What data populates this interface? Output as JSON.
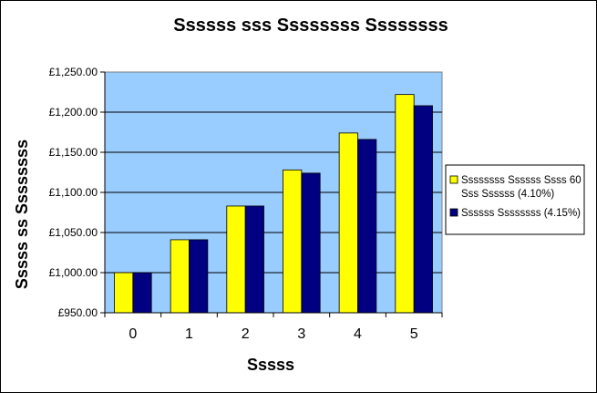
{
  "chart_data": {
    "type": "bar",
    "title": "Ssssss sss Ssssssss Ssssssss",
    "xlabel": "Sssss",
    "ylabel": "Sssss ss Ssssssss",
    "categories": [
      "0",
      "1",
      "2",
      "3",
      "4",
      "5"
    ],
    "ylim": [
      950,
      1250
    ],
    "yticks": [
      950,
      1000,
      1050,
      1100,
      1150,
      1200,
      1250
    ],
    "ytick_labels": [
      "£950.00",
      "£1,000.00",
      "£1,050.00",
      "£1,100.00",
      "£1,150.00",
      "£1,200.00",
      "£1,250.00"
    ],
    "grid": true,
    "legend_position": "right",
    "plot_background": "#99CCFF",
    "series": [
      {
        "name": "Ssssssss Ssssss Ssss 60 Sss Ssssss (4.10%)",
        "legend_lines": [
          "Ssssssss Ssssss Ssss 60",
          "Sss Ssssss (4.10%)"
        ],
        "color": "#FFFF00",
        "values": [
          1000,
          1041,
          1083,
          1128,
          1174,
          1222
        ]
      },
      {
        "name": "Ssssss Ssssssss (4.15%)",
        "legend_lines": [
          "Ssssss Ssssssss (4.15%)"
        ],
        "color": "#000080",
        "values": [
          1000,
          1041,
          1083,
          1124,
          1166,
          1208
        ]
      }
    ]
  }
}
